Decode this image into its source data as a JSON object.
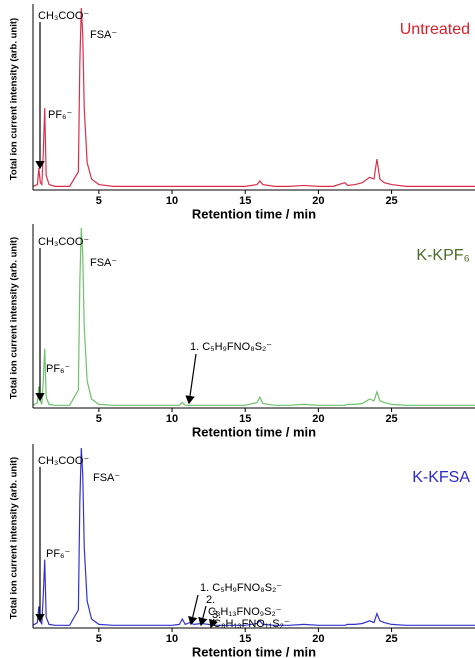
{
  "chart_data": [
    {
      "type": "line",
      "xlabel": "Retention time / min",
      "ylabel": "Total ion current intensity (arb. unit)",
      "xlim": [
        0.5,
        30.7
      ],
      "xticks": [
        5,
        10,
        15,
        20,
        25
      ],
      "ylim": [
        0,
        100
      ],
      "x": [
        0.5,
        0.8,
        0.9,
        1.0,
        1.1,
        1.2,
        1.3,
        1.4,
        1.6,
        2,
        3,
        3.6,
        3.7,
        3.8,
        3.9,
        4.0,
        4.2,
        4.5,
        5,
        6,
        7,
        8,
        9,
        10,
        10.5,
        10.7,
        10.9,
        11.2,
        11.5,
        12,
        13,
        14,
        15,
        15.8,
        16,
        16.2,
        17,
        18,
        19,
        20,
        21,
        21.8,
        22,
        22.5,
        23,
        23.5,
        23.8,
        24,
        24.2,
        24.5,
        25,
        26,
        27,
        28,
        29,
        30,
        30.7
      ],
      "series": [
        {
          "name": "Untreated",
          "color": "#d9304a",
          "label_color": "#d8202c",
          "values": [
            2,
            3,
            12,
            4,
            3,
            20,
            45,
            8,
            3,
            2,
            2,
            10,
            70,
            100,
            85,
            45,
            15,
            6,
            3,
            2,
            2,
            2,
            2,
            2,
            2,
            2,
            2,
            2,
            2,
            2,
            2,
            2,
            2,
            3,
            5,
            3,
            2,
            2,
            2.5,
            2,
            2,
            4,
            2.5,
            3,
            4,
            7,
            6,
            17,
            6,
            4,
            3,
            2,
            2,
            2,
            2,
            2,
            2
          ]
        }
      ],
      "annotations": [
        "CH₃COO⁻",
        "PF₆⁻",
        "FSA⁻"
      ]
    },
    {
      "type": "line",
      "xlabel": "Retention time / min",
      "ylabel": "Total ion current intensity (arb. unit)",
      "xlim": [
        0.5,
        30.7
      ],
      "xticks": [
        5,
        10,
        15,
        20,
        25
      ],
      "ylim": [
        0,
        100
      ],
      "x": [
        0.5,
        0.8,
        0.9,
        1.0,
        1.1,
        1.2,
        1.3,
        1.4,
        1.6,
        2,
        3,
        3.6,
        3.7,
        3.8,
        3.9,
        4.0,
        4.2,
        4.5,
        5,
        6,
        7,
        8,
        9,
        10,
        10.5,
        10.7,
        10.9,
        11.2,
        11.5,
        12,
        13,
        14,
        15,
        15.8,
        16,
        16.2,
        17,
        18,
        19,
        20,
        21,
        21.8,
        22,
        22.5,
        23,
        23.5,
        23.8,
        24,
        24.2,
        24.5,
        25,
        26,
        27,
        28,
        29,
        30,
        30.7
      ],
      "series": [
        {
          "name": "K-KPF₆",
          "color": "#6dc26a",
          "label_color": "#4a6b2a",
          "values": [
            1.5,
            3,
            12,
            4,
            2,
            15,
            33,
            6,
            2,
            1.5,
            1.5,
            10,
            70,
            100,
            85,
            45,
            15,
            5,
            2,
            1.5,
            1.5,
            1.5,
            1.5,
            1.5,
            1.5,
            3,
            1.5,
            1.5,
            1.5,
            1.5,
            1.5,
            1.5,
            1.5,
            3,
            6,
            2.5,
            1.5,
            1.5,
            2,
            1.5,
            1.5,
            1.5,
            2,
            2,
            2.5,
            5,
            4,
            9,
            4,
            3,
            2,
            1.5,
            1.5,
            1.5,
            1.5,
            1.5,
            1.5
          ]
        }
      ],
      "annotations": [
        "CH₃COO⁻",
        "PF₆⁻",
        "FSA⁻",
        "1. C₅H₉FNO₈S₂⁻"
      ]
    },
    {
      "type": "line",
      "xlabel": "Retention time / min",
      "ylabel": "Total ion current intensity (arb. unit)",
      "xlim": [
        0.5,
        30.7
      ],
      "xticks": [
        5,
        10,
        15,
        20,
        25
      ],
      "ylim": [
        0,
        100
      ],
      "x": [
        0.5,
        0.8,
        0.9,
        1.0,
        1.1,
        1.2,
        1.3,
        1.4,
        1.6,
        2,
        3,
        3.6,
        3.7,
        3.8,
        3.9,
        4.0,
        4.2,
        4.5,
        5,
        6,
        7,
        8,
        9,
        10,
        10.5,
        10.7,
        10.9,
        11.2,
        11.5,
        12,
        13,
        14,
        15,
        15.8,
        16,
        16.2,
        17,
        18,
        19,
        20,
        21,
        21.8,
        22,
        22.5,
        23,
        23.5,
        23.8,
        24,
        24.2,
        24.5,
        25,
        26,
        27,
        28,
        29,
        30,
        30.7
      ],
      "series": [
        {
          "name": "K-KFSA",
          "color": "#3333cc",
          "label_color": "#2a2ad0",
          "values": [
            1.5,
            3,
            12,
            4,
            2,
            18,
            38,
            6,
            2,
            1.5,
            1.5,
            10,
            70,
            100,
            85,
            45,
            15,
            5,
            2,
            1.5,
            1.5,
            1.5,
            1.5,
            1.5,
            2,
            5,
            2,
            3,
            2,
            2.5,
            1.5,
            1.5,
            1.5,
            2.5,
            4,
            2,
            1.5,
            1.5,
            2,
            1.5,
            1.5,
            1.5,
            2,
            2,
            2.5,
            4,
            3,
            8,
            4,
            3,
            2,
            1.5,
            1.5,
            1.5,
            1.5,
            1.5,
            1.5
          ]
        }
      ],
      "annotations": [
        "CH₃COO⁻",
        "PF₆⁻",
        "FSA⁻",
        "1. C₅H₉FNO₈S₂⁻",
        "2.",
        "C₃H₁₃FNO₉S₂⁻",
        "3.",
        "C₈H₁₃FNO₁₁S₂⁻"
      ]
    }
  ]
}
